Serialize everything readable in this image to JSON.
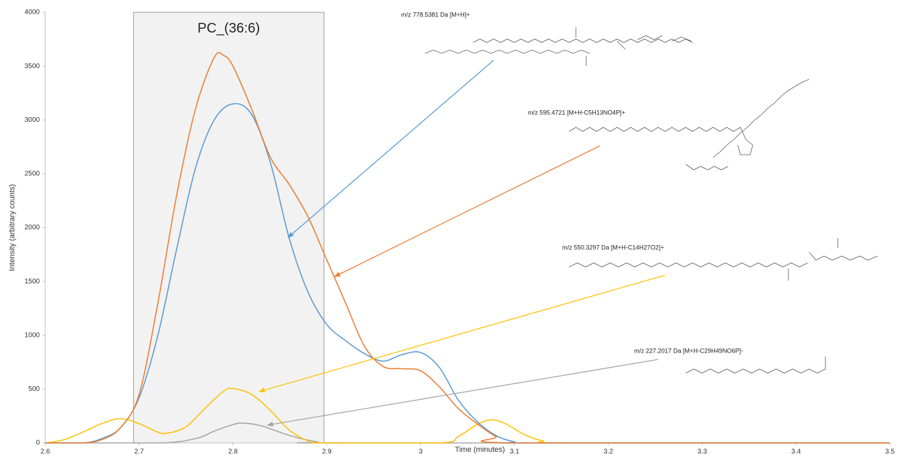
{
  "chart_data": {
    "type": "line",
    "x_label": "Time (minutes)",
    "y_label": "Intensity (arbitrary counts)",
    "xlim": [
      2.6,
      3.5
    ],
    "xticks": [
      2.6,
      2.7,
      2.8,
      2.9,
      3,
      3.1,
      3.2,
      3.3,
      3.4,
      3.5
    ],
    "ylim": [
      0,
      4000
    ],
    "yticks": [
      0,
      500,
      1000,
      1500,
      2000,
      2500,
      3000,
      3500,
      4000
    ],
    "grid": false,
    "highlight": {
      "label": "PC_(36:6)",
      "x": [
        2.694,
        2.897
      ]
    },
    "series": [
      {
        "name": "m/z 778.5381 Da [M+H]+",
        "color": "#5b9bd5",
        "x": [
          2.6,
          2.64,
          2.66,
          2.68,
          2.7,
          2.72,
          2.74,
          2.76,
          2.78,
          2.8,
          2.82,
          2.84,
          2.86,
          2.88,
          2.9,
          2.92,
          2.94,
          2.96,
          2.98,
          3.0,
          3.02,
          3.04,
          3.06,
          3.08,
          3.1,
          3.12,
          3.5
        ],
        "values": [
          0,
          0,
          40,
          140,
          420,
          1000,
          1800,
          2550,
          3000,
          3150,
          3050,
          2600,
          1900,
          1400,
          1100,
          950,
          830,
          760,
          820,
          840,
          700,
          400,
          200,
          70,
          10,
          0,
          0
        ]
      },
      {
        "name": "m/z 595.4721 [M+H-C5H13NO4P]+",
        "color": "#ed7d31",
        "x": [
          2.6,
          2.64,
          2.66,
          2.68,
          2.7,
          2.72,
          2.74,
          2.76,
          2.78,
          2.79,
          2.8,
          2.82,
          2.84,
          2.86,
          2.88,
          2.9,
          2.92,
          2.94,
          2.96,
          2.98,
          3.0,
          3.02,
          3.04,
          3.06,
          3.08,
          3.1,
          3.5
        ],
        "values": [
          0,
          0,
          30,
          140,
          450,
          1300,
          2300,
          3100,
          3580,
          3600,
          3500,
          3100,
          2650,
          2400,
          2100,
          1700,
          1300,
          900,
          710,
          690,
          670,
          520,
          320,
          180,
          60,
          0,
          0
        ]
      },
      {
        "name": "m/z 550.3297 Da [M+H-C14H27O2]+",
        "color": "#ffc000",
        "x": [
          2.6,
          2.62,
          2.64,
          2.66,
          2.68,
          2.7,
          2.72,
          2.73,
          2.75,
          2.77,
          2.79,
          2.8,
          2.82,
          2.84,
          2.86,
          2.88,
          2.9,
          3.02,
          3.04,
          3.06,
          3.075,
          3.09,
          3.11,
          3.13,
          3.16,
          3.5
        ],
        "values": [
          0,
          30,
          100,
          180,
          225,
          180,
          100,
          90,
          150,
          320,
          480,
          505,
          450,
          300,
          120,
          20,
          0,
          0,
          60,
          170,
          215,
          180,
          80,
          20,
          0,
          0
        ]
      },
      {
        "name": "m/z 227.2017 Da [M+H-C29H49NO6P]-",
        "color": "#a5a5a5",
        "x": [
          2.6,
          2.72,
          2.76,
          2.78,
          2.8,
          2.81,
          2.83,
          2.86,
          2.89,
          2.92,
          3.5
        ],
        "values": [
          0,
          0,
          40,
          110,
          170,
          185,
          160,
          70,
          10,
          0,
          0
        ]
      }
    ]
  }
}
